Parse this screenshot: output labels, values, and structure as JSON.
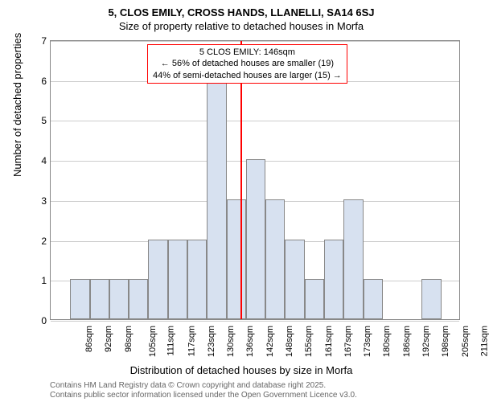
{
  "titles": {
    "main": "5, CLOS EMILY, CROSS HANDS, LLANELLI, SA14 6SJ",
    "sub": "Size of property relative to detached houses in Morfa"
  },
  "chart": {
    "type": "histogram",
    "ylabel": "Number of detached properties",
    "xlabel": "Distribution of detached houses by size in Morfa",
    "ylim": [
      0,
      7
    ],
    "yticks": [
      0,
      1,
      2,
      3,
      4,
      5,
      6,
      7
    ],
    "categories": [
      "86sqm",
      "92sqm",
      "98sqm",
      "105sqm",
      "111sqm",
      "117sqm",
      "123sqm",
      "130sqm",
      "136sqm",
      "142sqm",
      "148sqm",
      "155sqm",
      "161sqm",
      "167sqm",
      "173sqm",
      "180sqm",
      "186sqm",
      "192sqm",
      "198sqm",
      "205sqm",
      "211sqm"
    ],
    "values": [
      0,
      1,
      1,
      1,
      1,
      2,
      2,
      2,
      6,
      3,
      4,
      3,
      2,
      1,
      2,
      3,
      1,
      0,
      0,
      1,
      0
    ],
    "bar_color": "#d7e1f0",
    "bar_border": "#888",
    "grid_color": "#ccc",
    "background_color": "#ffffff",
    "reference_line": {
      "at_category_index": 9.7,
      "color": "#ff0000"
    },
    "annotation": {
      "line1": "5 CLOS EMILY: 146sqm",
      "line2": "← 56% of detached houses are smaller (19)",
      "line3": "44% of semi-detached houses are larger (15) →",
      "border_color": "#ff0000"
    }
  },
  "attribution": {
    "line1": "Contains HM Land Registry data © Crown copyright and database right 2025.",
    "line2": "Contains public sector information licensed under the Open Government Licence v3.0."
  }
}
